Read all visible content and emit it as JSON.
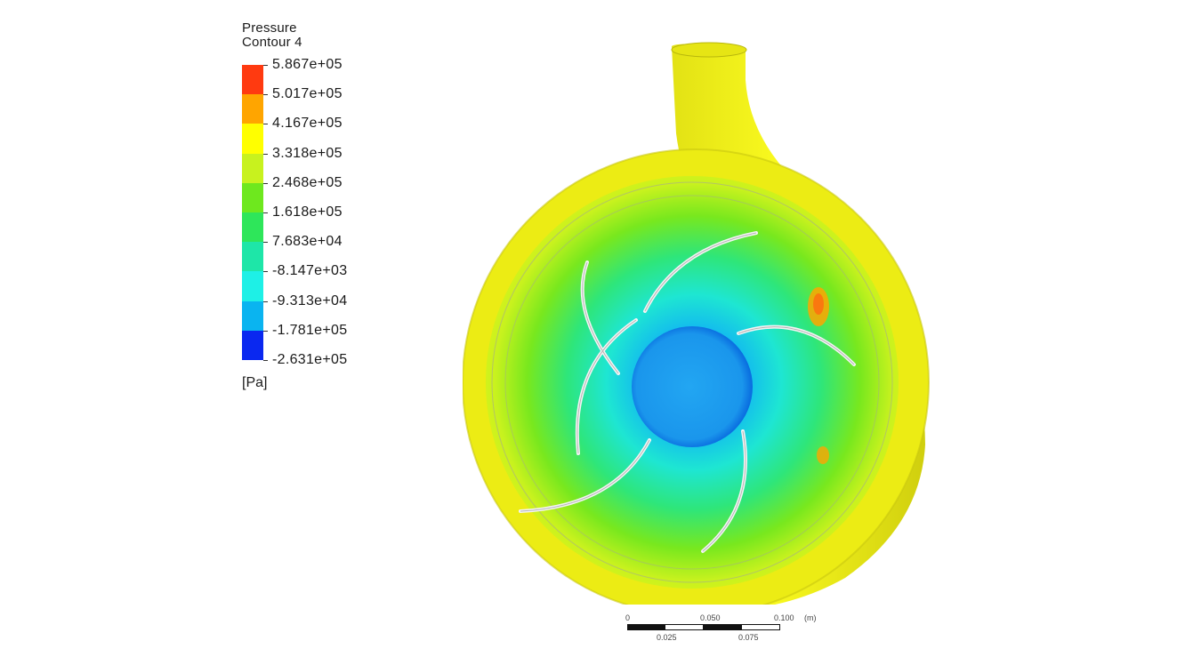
{
  "legend": {
    "title_line1": "Pressure",
    "title_line2": "Contour 4",
    "unit": "[Pa]",
    "levels": [
      {
        "label": "5.867e+05",
        "color": "#ff3a10"
      },
      {
        "label": "5.017e+05",
        "color": "#ffa500"
      },
      {
        "label": "4.167e+05",
        "color": "#ffff00"
      },
      {
        "label": "3.318e+05",
        "color": "#c8f21e"
      },
      {
        "label": "2.468e+05",
        "color": "#6ee81e"
      },
      {
        "label": "1.618e+05",
        "color": "#2ee65a"
      },
      {
        "label": "7.683e+04",
        "color": "#1ee6a8"
      },
      {
        "label": "-8.147e+03",
        "color": "#1ef0e6"
      },
      {
        "label": "-9.313e+04",
        "color": "#0ab4f0"
      },
      {
        "label": "-1.781e+05",
        "color": "#0a6ef0"
      },
      {
        "label": "-2.631e+05",
        "color": "#0a28f0"
      }
    ]
  },
  "scale_bar": {
    "unit": "(m)",
    "top_ticks": [
      "0",
      "0.050",
      "0.100"
    ],
    "bottom_ticks": [
      "0.025",
      "0.075"
    ]
  },
  "colors": {
    "volute": "#f0ef14",
    "volute_shade": "#c9c810",
    "hub": "#1e9ef0",
    "blade": "#e8e8e8"
  }
}
